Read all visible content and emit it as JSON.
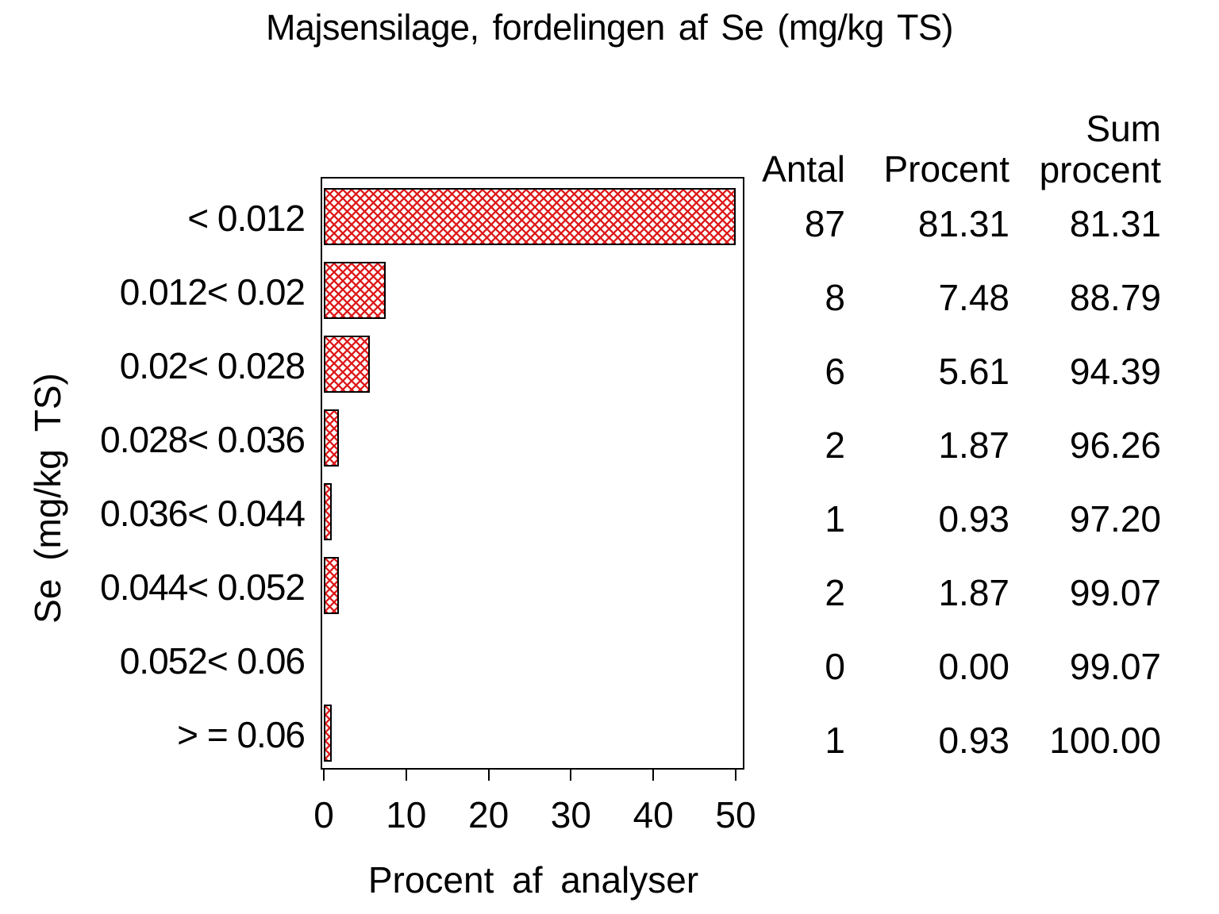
{
  "title": "Majsensilage, fordelingen af Se (mg/kg TS)",
  "chart_data": {
    "type": "bar",
    "orientation": "horizontal",
    "title": "Majsensilage, fordelingen af Se (mg/kg TS)",
    "xlabel": "Procent af analyser",
    "ylabel": "Se (mg/kg TS)",
    "categories": [
      "< 0.012",
      "0.012< 0.02",
      "0.02< 0.028",
      "0.028< 0.036",
      "0.036< 0.044",
      "0.044< 0.052",
      "0.052< 0.06",
      "> = 0.06"
    ],
    "series": [
      {
        "name": "Procent af analyser",
        "values": [
          81.31,
          7.48,
          5.61,
          1.87,
          0.93,
          1.87,
          0.0,
          0.93
        ]
      }
    ],
    "xlim": [
      0,
      50
    ],
    "xticks": [
      0,
      10,
      20,
      30,
      40,
      50
    ],
    "bars_clipped_at_xmax": true,
    "grid": false,
    "legend": "none",
    "bar_style": "red diagonal crosshatch pattern with black outline",
    "colors": {
      "bar_hatch": "#dd1818",
      "bar_border": "#000000",
      "axis": "#000000",
      "text": "#000000",
      "background": "#ffffff"
    }
  },
  "table": {
    "headers": {
      "antal": "Antal",
      "procent": "Procent",
      "sum": "Sum\nprocent"
    },
    "rows": [
      {
        "antal": "87",
        "procent": "81.31",
        "sum": "81.31"
      },
      {
        "antal": "8",
        "procent": "7.48",
        "sum": "88.79"
      },
      {
        "antal": "6",
        "procent": "5.61",
        "sum": "94.39"
      },
      {
        "antal": "2",
        "procent": "1.87",
        "sum": "96.26"
      },
      {
        "antal": "1",
        "procent": "0.93",
        "sum": "97.20"
      },
      {
        "antal": "2",
        "procent": "1.87",
        "sum": "99.07"
      },
      {
        "antal": "0",
        "procent": "0.00",
        "sum": "99.07"
      },
      {
        "antal": "1",
        "procent": "0.93",
        "sum": "100.00"
      }
    ]
  }
}
